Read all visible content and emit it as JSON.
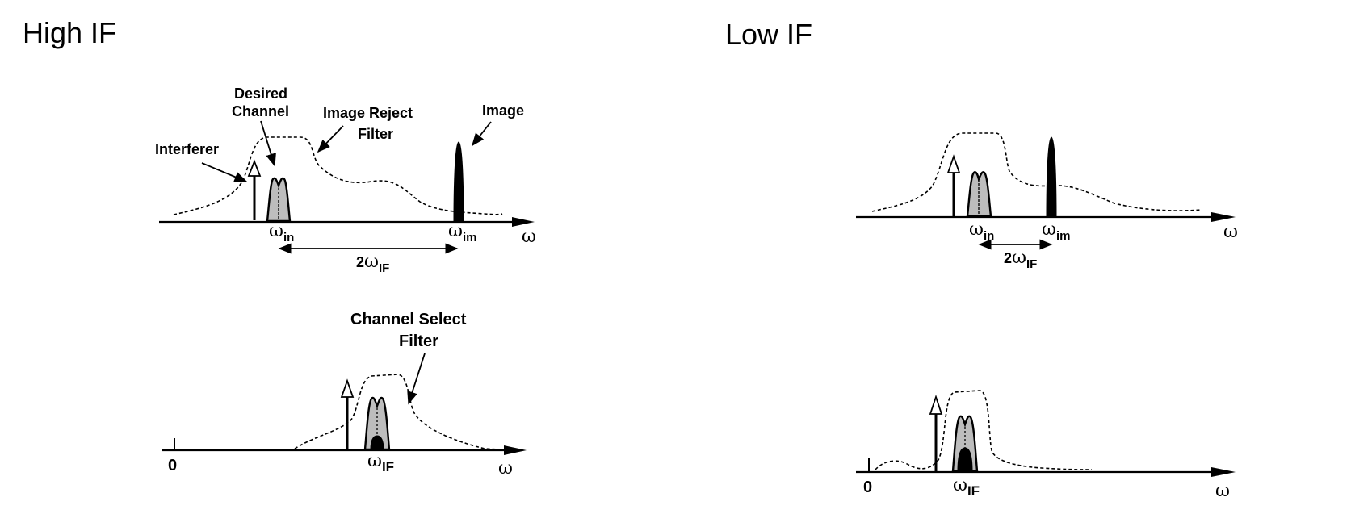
{
  "headings": {
    "high_if": "High IF",
    "low_if": "Low IF"
  },
  "labels": {
    "desired": "Desired",
    "channel": "Channel",
    "image_reject": "Image Reject",
    "filter": "Filter",
    "interferer": "Interferer",
    "image": "Image",
    "channel_select": "Channel Select",
    "omega": "ω",
    "sub_in": "in",
    "sub_im": "im",
    "sub_if": "IF",
    "two": "2",
    "zero": "0"
  }
}
